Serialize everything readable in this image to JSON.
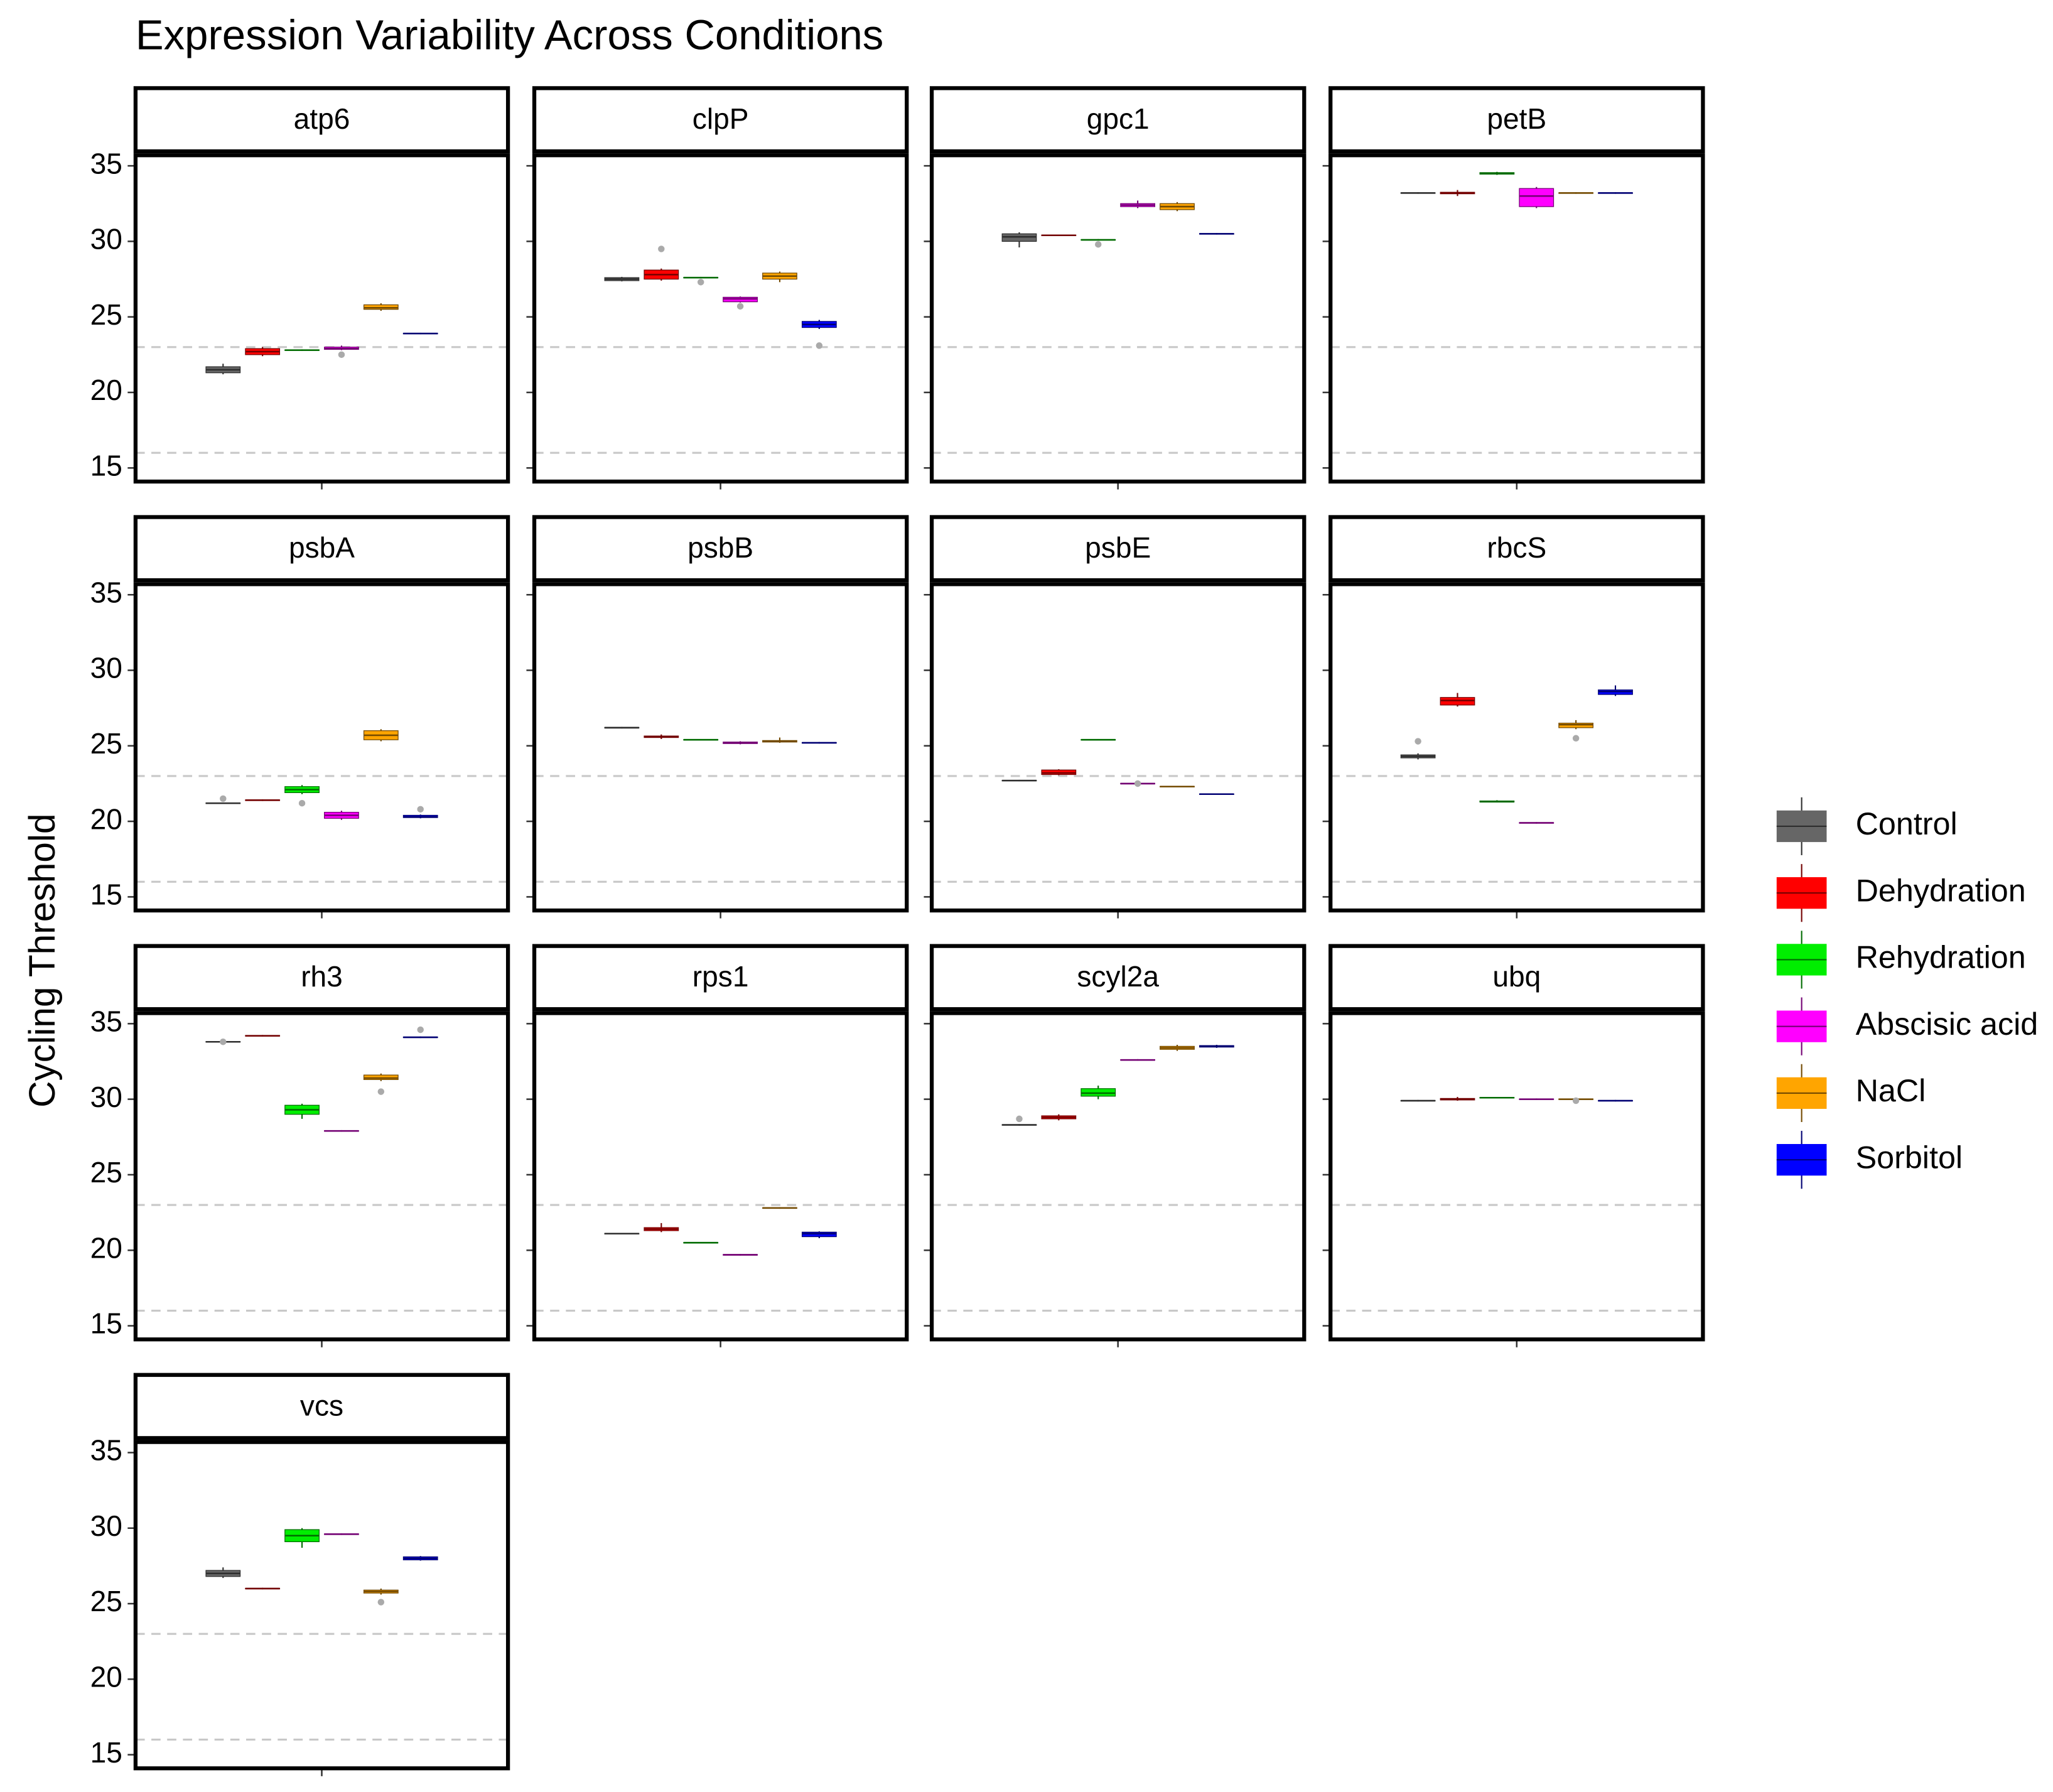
{
  "chart_data": {
    "type": "box",
    "title": "Expression Variability Across Conditions",
    "ylabel": "Cycling Threshold",
    "ylim": [
      14.1,
      35.7
    ],
    "yticks": [
      15,
      20,
      25,
      30,
      35
    ],
    "hlines": [
      23,
      16
    ],
    "series": [
      {
        "name": "Control",
        "color": "#666666"
      },
      {
        "name": "Dehydration",
        "color": "#ff0000"
      },
      {
        "name": "Rehydration",
        "color": "#00ee00"
      },
      {
        "name": "Abscisic acid",
        "color": "#ff00ff"
      },
      {
        "name": "NaCl",
        "color": "#ffa500"
      },
      {
        "name": "Sorbitol",
        "color": "#0000ff"
      }
    ],
    "facets": [
      {
        "name": "atp6",
        "boxes": [
          [
            21.2,
            21.3,
            21.5,
            21.7,
            21.9
          ],
          [
            22.4,
            22.5,
            22.7,
            22.9,
            23.0
          ],
          [
            22.75,
            22.78,
            22.8,
            22.82,
            22.85
          ],
          [
            22.8,
            22.85,
            22.9,
            23.0,
            23.1
          ],
          [
            25.4,
            25.5,
            25.6,
            25.8,
            25.9
          ],
          [
            23.85,
            23.88,
            23.9,
            23.92,
            23.95
          ]
        ],
        "outliers": [
          [],
          [],
          [],
          [
            22.5
          ],
          [],
          []
        ]
      },
      {
        "name": "clpP",
        "boxes": [
          [
            27.35,
            27.4,
            27.5,
            27.6,
            27.65
          ],
          [
            27.4,
            27.5,
            27.8,
            28.1,
            28.2
          ],
          [
            27.55,
            27.58,
            27.6,
            27.62,
            27.65
          ],
          [
            25.95,
            26.0,
            26.2,
            26.3,
            26.35
          ],
          [
            27.3,
            27.5,
            27.7,
            27.9,
            28.0
          ],
          [
            24.2,
            24.3,
            24.5,
            24.7,
            24.8
          ]
        ],
        "outliers": [
          [],
          [
            29.5
          ],
          [
            27.3
          ],
          [
            25.7
          ],
          [],
          [
            23.1
          ]
        ]
      },
      {
        "name": "gpc1",
        "boxes": [
          [
            29.6,
            30.0,
            30.3,
            30.5,
            30.6
          ],
          [
            30.35,
            30.38,
            30.4,
            30.42,
            30.45
          ],
          [
            30.05,
            30.08,
            30.1,
            30.12,
            30.15
          ],
          [
            32.2,
            32.3,
            32.4,
            32.5,
            32.7
          ],
          [
            32.0,
            32.1,
            32.3,
            32.5,
            32.6
          ],
          [
            30.45,
            30.48,
            30.5,
            30.52,
            30.55
          ]
        ],
        "outliers": [
          [],
          [],
          [
            29.8
          ],
          [],
          [],
          []
        ]
      },
      {
        "name": "petB",
        "boxes": [
          [
            33.15,
            33.18,
            33.2,
            33.22,
            33.25
          ],
          [
            33.0,
            33.15,
            33.2,
            33.25,
            33.4
          ],
          [
            34.4,
            34.45,
            34.5,
            34.55,
            34.6
          ],
          [
            32.2,
            32.3,
            33.0,
            33.5,
            33.6
          ],
          [
            33.15,
            33.18,
            33.2,
            33.22,
            33.25
          ],
          [
            33.15,
            33.18,
            33.2,
            33.22,
            33.25
          ]
        ],
        "outliers": [
          [],
          [],
          [],
          [],
          [],
          []
        ]
      },
      {
        "name": "psbA",
        "boxes": [
          [
            21.15,
            21.18,
            21.2,
            21.22,
            21.25
          ],
          [
            21.35,
            21.38,
            21.4,
            21.42,
            21.45
          ],
          [
            21.8,
            21.9,
            22.1,
            22.3,
            22.4
          ],
          [
            20.1,
            20.2,
            20.4,
            20.6,
            20.7
          ],
          [
            25.3,
            25.4,
            25.7,
            26.0,
            26.1
          ],
          [
            20.2,
            20.25,
            20.3,
            20.4,
            20.45
          ]
        ],
        "outliers": [
          [
            21.5
          ],
          [],
          [
            21.2
          ],
          [],
          [],
          [
            20.8
          ]
        ]
      },
      {
        "name": "psbB",
        "boxes": [
          [
            26.15,
            26.18,
            26.2,
            26.22,
            26.25
          ],
          [
            25.45,
            25.55,
            25.6,
            25.65,
            25.75
          ],
          [
            25.35,
            25.38,
            25.4,
            25.42,
            25.45
          ],
          [
            25.1,
            25.15,
            25.2,
            25.25,
            25.3
          ],
          [
            25.2,
            25.25,
            25.3,
            25.35,
            25.55
          ],
          [
            25.15,
            25.18,
            25.2,
            25.22,
            25.25
          ]
        ],
        "outliers": [
          [],
          [],
          [],
          [],
          [],
          []
        ]
      },
      {
        "name": "psbE",
        "boxes": [
          [
            22.65,
            22.68,
            22.7,
            22.72,
            22.75
          ],
          [
            23.05,
            23.1,
            23.2,
            23.4,
            23.45
          ],
          [
            25.35,
            25.38,
            25.4,
            25.42,
            25.45
          ],
          [
            22.45,
            22.48,
            22.5,
            22.52,
            22.55
          ],
          [
            22.25,
            22.28,
            22.3,
            22.32,
            22.35
          ],
          [
            21.75,
            21.78,
            21.8,
            21.82,
            21.85
          ]
        ],
        "outliers": [
          [],
          [],
          [],
          [
            22.5
          ],
          [],
          []
        ]
      },
      {
        "name": "rbcS",
        "boxes": [
          [
            24.1,
            24.2,
            24.3,
            24.4,
            24.5
          ],
          [
            27.6,
            27.7,
            28.0,
            28.2,
            28.5
          ],
          [
            21.25,
            21.28,
            21.3,
            21.35,
            21.4
          ],
          [
            19.85,
            19.88,
            19.9,
            19.92,
            19.95
          ],
          [
            26.1,
            26.2,
            26.4,
            26.5,
            26.7
          ],
          [
            28.3,
            28.4,
            28.6,
            28.7,
            29.0
          ]
        ],
        "outliers": [
          [
            25.3
          ],
          [],
          [],
          [],
          [
            25.5
          ],
          []
        ]
      },
      {
        "name": "rh3",
        "boxes": [
          [
            33.75,
            33.78,
            33.8,
            33.82,
            33.85
          ],
          [
            34.15,
            34.18,
            34.2,
            34.22,
            34.25
          ],
          [
            28.7,
            29.0,
            29.3,
            29.6,
            29.7
          ],
          [
            27.85,
            27.88,
            27.9,
            27.92,
            27.95
          ],
          [
            31.2,
            31.3,
            31.4,
            31.6,
            31.7
          ],
          [
            34.05,
            34.08,
            34.1,
            34.12,
            34.15
          ]
        ],
        "outliers": [
          [
            33.8
          ],
          [],
          [],
          [],
          [
            30.5
          ],
          [
            34.6
          ]
        ]
      },
      {
        "name": "rps1",
        "boxes": [
          [
            21.05,
            21.08,
            21.1,
            21.12,
            21.15
          ],
          [
            21.2,
            21.3,
            21.4,
            21.5,
            21.8
          ],
          [
            20.45,
            20.48,
            20.5,
            20.52,
            20.55
          ],
          [
            19.65,
            19.68,
            19.7,
            19.72,
            19.75
          ],
          [
            22.75,
            22.78,
            22.8,
            22.82,
            22.85
          ],
          [
            20.8,
            20.9,
            21.1,
            21.2,
            21.25
          ]
        ],
        "outliers": [
          [],
          [],
          [],
          [],
          [],
          []
        ]
      },
      {
        "name": "scyl2a",
        "boxes": [
          [
            28.25,
            28.28,
            28.3,
            28.32,
            28.35
          ],
          [
            28.6,
            28.7,
            28.8,
            28.9,
            29.0
          ],
          [
            30.0,
            30.2,
            30.4,
            30.7,
            30.9
          ],
          [
            32.55,
            32.58,
            32.6,
            32.62,
            32.65
          ],
          [
            33.2,
            33.3,
            33.4,
            33.5,
            33.6
          ],
          [
            33.4,
            33.45,
            33.5,
            33.55,
            33.6
          ]
        ],
        "outliers": [
          [
            28.7
          ],
          [],
          [],
          [],
          [],
          []
        ]
      },
      {
        "name": "ubq",
        "boxes": [
          [
            29.85,
            29.88,
            29.9,
            29.92,
            29.95
          ],
          [
            29.9,
            29.95,
            30.0,
            30.05,
            30.15
          ],
          [
            30.05,
            30.08,
            30.1,
            30.12,
            30.15
          ],
          [
            29.95,
            29.98,
            30.0,
            30.02,
            30.05
          ],
          [
            29.95,
            29.98,
            30.0,
            30.02,
            30.05
          ],
          [
            29.85,
            29.88,
            29.9,
            29.92,
            29.95
          ]
        ],
        "outliers": [
          [],
          [],
          [],
          [],
          [
            29.9
          ],
          []
        ]
      },
      {
        "name": "vcs",
        "boxes": [
          [
            26.7,
            26.8,
            27.0,
            27.2,
            27.4
          ],
          [
            25.95,
            25.98,
            26.0,
            26.02,
            26.05
          ],
          [
            28.7,
            29.1,
            29.5,
            29.9,
            30.0
          ],
          [
            29.55,
            29.58,
            29.6,
            29.62,
            29.65
          ],
          [
            25.6,
            25.7,
            25.8,
            25.9,
            26.0
          ],
          [
            27.85,
            27.9,
            28.0,
            28.1,
            28.15
          ]
        ],
        "outliers": [
          [],
          [],
          [],
          [],
          [
            25.1
          ],
          []
        ]
      }
    ]
  }
}
